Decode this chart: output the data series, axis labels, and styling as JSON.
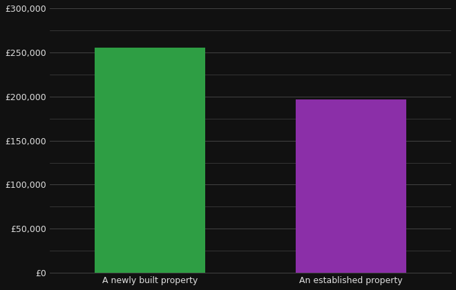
{
  "categories": [
    "A newly built property",
    "An established property"
  ],
  "values": [
    255000,
    197000
  ],
  "bar_colors": [
    "#2e9e44",
    "#8b2fa8"
  ],
  "background_color": "#111111",
  "text_color": "#e0e0e0",
  "grid_color": "#444444",
  "ylim": [
    0,
    300000
  ],
  "yticks_major": [
    0,
    50000,
    100000,
    150000,
    200000,
    250000,
    300000
  ],
  "ytick_labels": [
    "£0",
    "£50,000",
    "£100,000",
    "£150,000",
    "£200,000",
    "£250,000",
    "£300,000"
  ],
  "yticks_minor": [
    25000,
    75000,
    125000,
    175000,
    225000,
    275000
  ],
  "bar_width": 0.55,
  "xlim": [
    -0.5,
    1.5
  ]
}
